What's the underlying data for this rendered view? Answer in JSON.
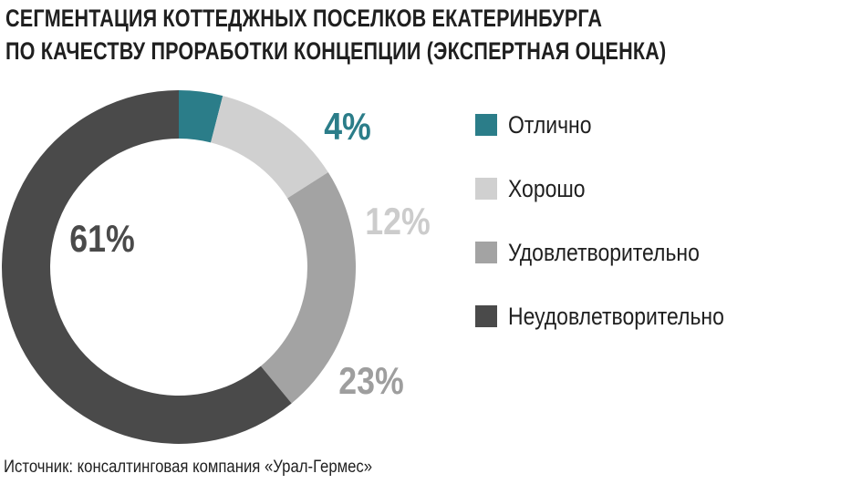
{
  "title": {
    "line1": "СЕГМЕНТАЦИЯ КОТТЕДЖНЫХ ПОСЕЛКОВ ЕКАТЕРИНБУРГА",
    "line2": "ПО КАЧЕСТВУ ПРОРАБОТКИ КОНЦЕПЦИИ (ЭКСПЕРТНАЯ ОЦЕНКА)"
  },
  "chart_data": {
    "type": "pie",
    "donut": true,
    "legend_position": "right",
    "start": "top",
    "direction": "clockwise",
    "slices": [
      {
        "label": "Отлично",
        "value": 4,
        "display": "4%",
        "color": "#2b7d89",
        "label_color": "#2b7d89"
      },
      {
        "label": "Хорошо",
        "value": 12,
        "display": "12%",
        "color": "#d0d0d0",
        "label_color": "#cccccc"
      },
      {
        "label": "Удовлетворительно",
        "value": 23,
        "display": "23%",
        "color": "#a3a3a3",
        "label_color": "#9e9e9e"
      },
      {
        "label": "Неудовлетворительно",
        "value": 61,
        "display": "61%",
        "color": "#4a4a4a",
        "label_color": "#4a4a4a"
      }
    ]
  },
  "source": "Источник: консалтинговая компания «Урал-Гермес»"
}
